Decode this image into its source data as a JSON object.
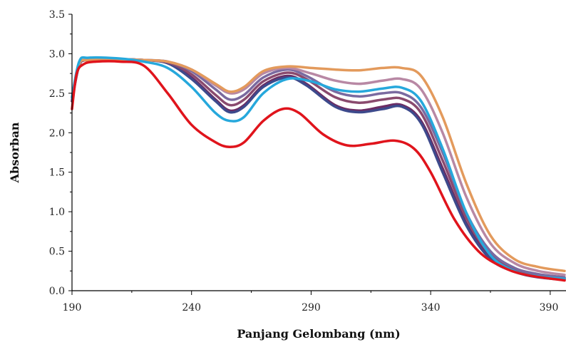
{
  "chart_data": {
    "type": "line",
    "title": "",
    "xlabel": "Panjang Gelombang (nm)",
    "ylabel": "Absorban",
    "xlim": [
      190,
      396
    ],
    "ylim": [
      0,
      3.5
    ],
    "x_ticks": [
      190,
      240,
      290,
      340,
      390
    ],
    "y_ticks": [
      0.0,
      0.5,
      1.0,
      1.5,
      2.0,
      2.5,
      3.0,
      3.5
    ],
    "x_tick_labels": [
      "190",
      "240",
      "290",
      "340",
      "390"
    ],
    "y_tick_labels": [
      "0.0",
      "0.5",
      "1.0",
      "1.5",
      "2.0",
      "2.5",
      "3.0",
      "3.5"
    ],
    "grid": false,
    "legend": "none",
    "series": [
      {
        "color": "#e0141c",
        "points": [
          [
            190,
            2.3
          ],
          [
            192,
            2.75
          ],
          [
            195,
            2.87
          ],
          [
            200,
            2.9
          ],
          [
            210,
            2.9
          ],
          [
            220,
            2.85
          ],
          [
            230,
            2.5
          ],
          [
            240,
            2.1
          ],
          [
            250,
            1.88
          ],
          [
            256,
            1.82
          ],
          [
            262,
            1.88
          ],
          [
            270,
            2.15
          ],
          [
            278,
            2.3
          ],
          [
            285,
            2.25
          ],
          [
            295,
            1.98
          ],
          [
            305,
            1.84
          ],
          [
            315,
            1.86
          ],
          [
            325,
            1.9
          ],
          [
            333,
            1.8
          ],
          [
            340,
            1.5
          ],
          [
            350,
            0.9
          ],
          [
            360,
            0.5
          ],
          [
            370,
            0.3
          ],
          [
            380,
            0.2
          ],
          [
            396,
            0.13
          ]
        ]
      },
      {
        "color": "#6b2c64",
        "points": [
          [
            190,
            2.4
          ],
          [
            193,
            2.85
          ],
          [
            197,
            2.92
          ],
          [
            210,
            2.93
          ],
          [
            220,
            2.92
          ],
          [
            230,
            2.88
          ],
          [
            240,
            2.7
          ],
          [
            250,
            2.42
          ],
          [
            256,
            2.28
          ],
          [
            262,
            2.35
          ],
          [
            270,
            2.6
          ],
          [
            280,
            2.72
          ],
          [
            288,
            2.62
          ],
          [
            300,
            2.35
          ],
          [
            310,
            2.28
          ],
          [
            320,
            2.33
          ],
          [
            328,
            2.35
          ],
          [
            336,
            2.15
          ],
          [
            345,
            1.55
          ],
          [
            355,
            0.85
          ],
          [
            365,
            0.42
          ],
          [
            375,
            0.25
          ],
          [
            385,
            0.18
          ],
          [
            396,
            0.15
          ]
        ]
      },
      {
        "color": "#3d4a8c",
        "points": [
          [
            190,
            2.4
          ],
          [
            193,
            2.85
          ],
          [
            197,
            2.92
          ],
          [
            210,
            2.93
          ],
          [
            220,
            2.92
          ],
          [
            230,
            2.88
          ],
          [
            240,
            2.68
          ],
          [
            250,
            2.4
          ],
          [
            256,
            2.26
          ],
          [
            262,
            2.33
          ],
          [
            270,
            2.58
          ],
          [
            280,
            2.7
          ],
          [
            288,
            2.6
          ],
          [
            300,
            2.33
          ],
          [
            310,
            2.26
          ],
          [
            320,
            2.3
          ],
          [
            328,
            2.33
          ],
          [
            336,
            2.12
          ],
          [
            345,
            1.5
          ],
          [
            355,
            0.82
          ],
          [
            365,
            0.4
          ],
          [
            375,
            0.24
          ],
          [
            385,
            0.17
          ],
          [
            396,
            0.14
          ]
        ]
      },
      {
        "color": "#8a4a6e",
        "points": [
          [
            190,
            2.4
          ],
          [
            193,
            2.85
          ],
          [
            197,
            2.92
          ],
          [
            210,
            2.93
          ],
          [
            220,
            2.92
          ],
          [
            230,
            2.89
          ],
          [
            240,
            2.74
          ],
          [
            250,
            2.48
          ],
          [
            256,
            2.35
          ],
          [
            262,
            2.42
          ],
          [
            270,
            2.65
          ],
          [
            280,
            2.76
          ],
          [
            288,
            2.68
          ],
          [
            300,
            2.45
          ],
          [
            310,
            2.38
          ],
          [
            320,
            2.42
          ],
          [
            328,
            2.43
          ],
          [
            336,
            2.25
          ],
          [
            345,
            1.65
          ],
          [
            355,
            0.92
          ],
          [
            365,
            0.46
          ],
          [
            375,
            0.27
          ],
          [
            385,
            0.2
          ],
          [
            396,
            0.16
          ]
        ]
      },
      {
        "color": "#7a6aa0",
        "points": [
          [
            190,
            2.42
          ],
          [
            193,
            2.86
          ],
          [
            197,
            2.92
          ],
          [
            210,
            2.93
          ],
          [
            220,
            2.92
          ],
          [
            230,
            2.9
          ],
          [
            240,
            2.78
          ],
          [
            250,
            2.55
          ],
          [
            256,
            2.42
          ],
          [
            262,
            2.48
          ],
          [
            270,
            2.7
          ],
          [
            280,
            2.8
          ],
          [
            288,
            2.72
          ],
          [
            300,
            2.52
          ],
          [
            310,
            2.46
          ],
          [
            320,
            2.5
          ],
          [
            328,
            2.5
          ],
          [
            336,
            2.32
          ],
          [
            345,
            1.75
          ],
          [
            355,
            0.98
          ],
          [
            365,
            0.5
          ],
          [
            375,
            0.29
          ],
          [
            385,
            0.21
          ],
          [
            396,
            0.17
          ]
        ]
      },
      {
        "color": "#26a8dc",
        "points": [
          [
            190,
            2.45
          ],
          [
            193,
            2.9
          ],
          [
            197,
            2.95
          ],
          [
            210,
            2.94
          ],
          [
            220,
            2.9
          ],
          [
            230,
            2.82
          ],
          [
            240,
            2.58
          ],
          [
            250,
            2.25
          ],
          [
            256,
            2.15
          ],
          [
            262,
            2.2
          ],
          [
            270,
            2.5
          ],
          [
            280,
            2.68
          ],
          [
            290,
            2.65
          ],
          [
            300,
            2.55
          ],
          [
            310,
            2.52
          ],
          [
            320,
            2.56
          ],
          [
            328,
            2.57
          ],
          [
            336,
            2.4
          ],
          [
            345,
            1.8
          ],
          [
            355,
            0.98
          ],
          [
            365,
            0.45
          ],
          [
            375,
            0.25
          ],
          [
            385,
            0.18
          ],
          [
            396,
            0.15
          ]
        ]
      },
      {
        "color": "#b888a4",
        "points": [
          [
            190,
            2.45
          ],
          [
            193,
            2.87
          ],
          [
            197,
            2.92
          ],
          [
            210,
            2.93
          ],
          [
            220,
            2.92
          ],
          [
            230,
            2.9
          ],
          [
            240,
            2.8
          ],
          [
            250,
            2.6
          ],
          [
            256,
            2.5
          ],
          [
            262,
            2.55
          ],
          [
            270,
            2.75
          ],
          [
            280,
            2.82
          ],
          [
            290,
            2.75
          ],
          [
            300,
            2.66
          ],
          [
            310,
            2.62
          ],
          [
            320,
            2.66
          ],
          [
            328,
            2.68
          ],
          [
            336,
            2.55
          ],
          [
            345,
            2.0
          ],
          [
            355,
            1.18
          ],
          [
            365,
            0.6
          ],
          [
            375,
            0.35
          ],
          [
            385,
            0.25
          ],
          [
            396,
            0.2
          ]
        ]
      },
      {
        "color": "#e39a5c",
        "points": [
          [
            190,
            2.45
          ],
          [
            193,
            2.87
          ],
          [
            197,
            2.92
          ],
          [
            210,
            2.93
          ],
          [
            220,
            2.92
          ],
          [
            230,
            2.9
          ],
          [
            240,
            2.8
          ],
          [
            250,
            2.62
          ],
          [
            256,
            2.52
          ],
          [
            262,
            2.58
          ],
          [
            270,
            2.78
          ],
          [
            280,
            2.84
          ],
          [
            290,
            2.82
          ],
          [
            300,
            2.8
          ],
          [
            310,
            2.79
          ],
          [
            320,
            2.82
          ],
          [
            328,
            2.82
          ],
          [
            336,
            2.72
          ],
          [
            345,
            2.2
          ],
          [
            355,
            1.35
          ],
          [
            365,
            0.7
          ],
          [
            375,
            0.4
          ],
          [
            385,
            0.3
          ],
          [
            396,
            0.25
          ]
        ]
      }
    ]
  }
}
